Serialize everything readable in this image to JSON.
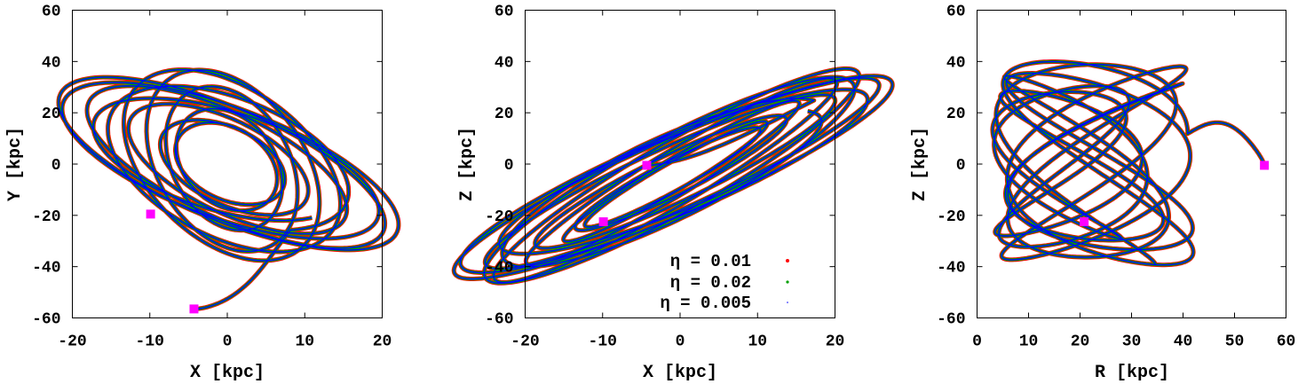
{
  "chart_data": [
    {
      "type": "line",
      "xlabel": "X [kpc]",
      "ylabel": "Y [kpc]",
      "xlim": [
        -20,
        20
      ],
      "ylim": [
        -60,
        60
      ],
      "xticks": [
        "-20",
        "-10",
        "0",
        "10",
        "20"
      ],
      "yticks": [
        "-60",
        "-40",
        "-20",
        "0",
        "20",
        "40",
        "60"
      ],
      "grid": false,
      "series": [
        {
          "name": "η = 0.01",
          "color": "#ff0000",
          "kind": "precessing-loop-orbit",
          "start": [
            -4.3,
            -56.5
          ],
          "center": [
            0,
            0
          ],
          "semi_major": [
            16,
            38
          ],
          "semi_minor": [
            6,
            14
          ],
          "tilt_deg": [
            -60,
            -85
          ],
          "loops": 12
        },
        {
          "name": "η = 0.02",
          "color": "#00a000",
          "kind": "precessing-loop-orbit",
          "start": [
            -4.3,
            -56.5
          ],
          "center": [
            0,
            0
          ],
          "semi_major": [
            16,
            38
          ],
          "semi_minor": [
            6,
            14
          ],
          "tilt_deg": [
            -60,
            -85
          ],
          "loops": 12
        },
        {
          "name": "η = 0.005",
          "color": "#0000ff",
          "kind": "precessing-loop-orbit",
          "start": [
            -4.3,
            -56.5
          ],
          "center": [
            0,
            0
          ],
          "semi_major": [
            16,
            38
          ],
          "semi_minor": [
            6,
            14
          ],
          "tilt_deg": [
            -60,
            -85
          ],
          "loops": 12
        }
      ],
      "markers": [
        {
          "x": -4.3,
          "y": -56.5,
          "color": "#ff00ff"
        },
        {
          "x": -9.9,
          "y": -19.5,
          "color": "#ff00ff"
        }
      ]
    },
    {
      "type": "line",
      "xlabel": "X [kpc]",
      "ylabel": "Z [kpc]",
      "xlim": [
        -20,
        20
      ],
      "ylim": [
        -60,
        60
      ],
      "xticks": [
        "-20",
        "-10",
        "0",
        "10",
        "20"
      ],
      "yticks": [
        "-60",
        "-40",
        "-20",
        "0",
        "20",
        "40",
        "60"
      ],
      "grid": false,
      "legend": {
        "placement": "bottom-right",
        "entries": [
          {
            "label": "η = 0.01",
            "color": "#ff0000",
            "marker": "dot"
          },
          {
            "label": "η = 0.02",
            "color": "#00a000",
            "marker": "dot"
          },
          {
            "label": "η = 0.005",
            "color": "#0000ff",
            "marker": "dot"
          }
        ]
      },
      "series": [
        {
          "name": "η = 0.01",
          "color": "#ff0000",
          "kind": "precessing-loop-orbit",
          "start": [
            -4.3,
            -0.5
          ],
          "center": [
            -1,
            -5
          ],
          "semi_major": [
            22,
            48
          ],
          "semi_minor": [
            3,
            10
          ],
          "tilt_deg": [
            55,
            62
          ],
          "loops": 12
        },
        {
          "name": "η = 0.02",
          "color": "#00a000",
          "kind": "precessing-loop-orbit",
          "start": [
            -4.3,
            -0.5
          ],
          "center": [
            -1,
            -5
          ],
          "semi_major": [
            22,
            48
          ],
          "semi_minor": [
            3,
            10
          ],
          "tilt_deg": [
            55,
            62
          ],
          "loops": 12
        },
        {
          "name": "η = 0.005",
          "color": "#0000ff",
          "kind": "precessing-loop-orbit",
          "start": [
            -4.3,
            -0.5
          ],
          "center": [
            -1,
            -5
          ],
          "semi_major": [
            22,
            48
          ],
          "semi_minor": [
            3,
            10
          ],
          "tilt_deg": [
            55,
            62
          ],
          "loops": 12
        }
      ],
      "markers": [
        {
          "x": -4.3,
          "y": -0.5,
          "color": "#ff00ff"
        },
        {
          "x": -9.9,
          "y": -22.5,
          "color": "#ff00ff"
        }
      ]
    },
    {
      "type": "line",
      "xlabel": "R [kpc]",
      "ylabel": "Z [kpc]",
      "xlim": [
        0,
        60
      ],
      "ylim": [
        -60,
        60
      ],
      "xticks": [
        "0",
        "10",
        "20",
        "30",
        "40",
        "50",
        "60"
      ],
      "yticks": [
        "-60",
        "-40",
        "-20",
        "0",
        "20",
        "40",
        "60"
      ],
      "grid": false,
      "series": [
        {
          "name": "η = 0.01",
          "color": "#ff0000",
          "kind": "meridional-bounce-orbit",
          "start": [
            55.8,
            -0.5
          ],
          "r_inner": 4.5,
          "r_outer": [
            28,
            42
          ],
          "z_amp": 40,
          "loops": 14
        },
        {
          "name": "η = 0.02",
          "color": "#00a000",
          "kind": "meridional-bounce-orbit",
          "start": [
            55.8,
            -0.5
          ],
          "r_inner": 4.5,
          "r_outer": [
            28,
            42
          ],
          "z_amp": 40,
          "loops": 14
        },
        {
          "name": "η = 0.005",
          "color": "#0000ff",
          "kind": "meridional-bounce-orbit",
          "start": [
            55.8,
            -0.5
          ],
          "r_inner": 4.5,
          "r_outer": [
            28,
            42
          ],
          "z_amp": 40,
          "loops": 14
        }
      ],
      "markers": [
        {
          "x": 55.8,
          "y": -0.5,
          "color": "#ff00ff"
        },
        {
          "x": 20.8,
          "y": -22.5,
          "color": "#ff00ff"
        }
      ]
    }
  ]
}
